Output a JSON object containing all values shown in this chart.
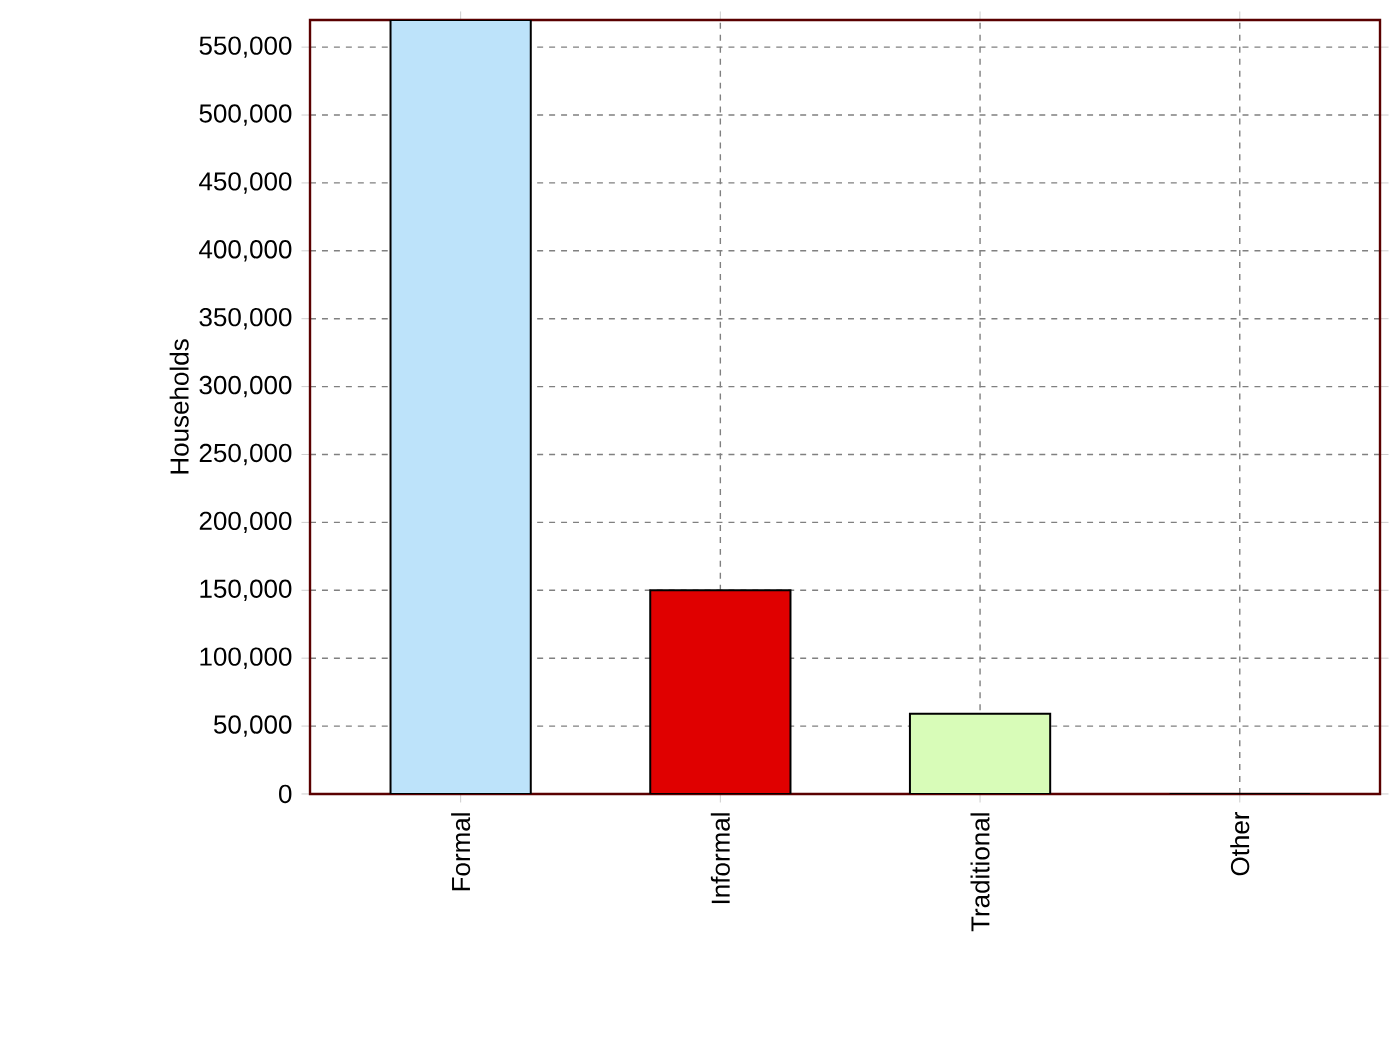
{
  "chart_data": {
    "type": "bar",
    "ylabel": "Households",
    "categories": [
      "Formal",
      "Informal",
      "Traditional",
      "Other"
    ],
    "values": [
      570000,
      150000,
      59000,
      0
    ],
    "colors": [
      "#bde3fa",
      "#e00000",
      "#d8fcb8",
      "#ffffc0"
    ],
    "ylim": [
      0,
      570000
    ],
    "yticks": [
      {
        "value": 0,
        "label": "0"
      },
      {
        "value": 50000,
        "label": "50,000"
      },
      {
        "value": 100000,
        "label": "100,000"
      },
      {
        "value": 150000,
        "label": "150,000"
      },
      {
        "value": 200000,
        "label": "200,000"
      },
      {
        "value": 250000,
        "label": "250,000"
      },
      {
        "value": 300000,
        "label": "300,000"
      },
      {
        "value": 350000,
        "label": "350,000"
      },
      {
        "value": 400000,
        "label": "400,000"
      },
      {
        "value": 450000,
        "label": "450,000"
      },
      {
        "value": 500000,
        "label": "500,000"
      },
      {
        "value": 550000,
        "label": "550,000"
      }
    ],
    "grid": true
  }
}
